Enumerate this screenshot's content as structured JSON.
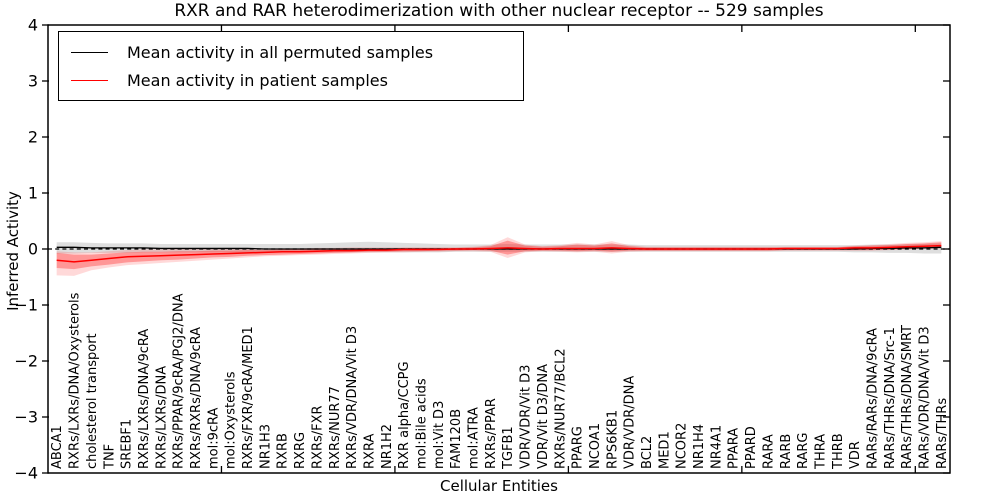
{
  "legend": {
    "items": [
      {
        "label": "Mean activity in all permuted samples",
        "color": "#000000"
      },
      {
        "label": "Mean activity in patient samples",
        "color": "#ff0000"
      }
    ]
  },
  "chart_data": {
    "type": "line",
    "title": "RXR and RAR heterodimerization with other nuclear receptor -- 529 samples",
    "xlabel": "Cellular Entities",
    "ylabel": "Inferred Activity",
    "ylim": [
      -4,
      4
    ],
    "ytick_labels": [
      "4",
      "3",
      "2",
      "1",
      "0",
      "−1",
      "−2",
      "−3",
      "−4"
    ],
    "ytick_values": [
      4,
      3,
      2,
      1,
      0,
      -1,
      -2,
      -3,
      -4
    ],
    "xtick_major_positions": [
      10,
      20,
      30,
      40,
      50
    ],
    "grid": false,
    "legend_position": "upper left",
    "zero_line": {
      "y": 0,
      "style": "dashed",
      "color": "#000000"
    },
    "axis_color": "#000000",
    "categories": [
      "ABCA1",
      "RXRs/LXRs/DNA/Oxysterols",
      "cholesterol transport",
      "TNF",
      "SREBF1",
      "RXRs/LXRs/DNA/9cRA",
      "RXRs/LXRs/DNA",
      "RXRs/PPAR/9cRA/PGJ2/DNA",
      "RXRs/RXRs/DNA/9cRA",
      "mol:9cRA",
      "mol:Oxysterols",
      "RXRs/FXR/9cRA/MED1",
      "NR1H3",
      "RXRB",
      "RXRG",
      "RXRs/FXR",
      "RXRs/NUR77",
      "RXRs/VDR/DNA/Vit D3",
      "RXRA",
      "NR1H2",
      "RXR alpha/CCPG",
      "mol:Bile acids",
      "mol:Vit D3",
      "FAM120B",
      "mol:ATRA",
      "RXRs/PPAR",
      "TGFB1",
      "VDR/VDR/Vit D3",
      "VDR/Vit D3/DNA",
      "RXRs/NUR77/BCL2",
      "PPARG",
      "NCOA1",
      "RPS6KB1",
      "VDR/VDR/DNA",
      "BCL2",
      "MED1",
      "NCOR2",
      "NR1H4",
      "NR4A1",
      "PPARA",
      "PPARD",
      "RARA",
      "RARB",
      "RARG",
      "THRA",
      "THRB",
      "VDR",
      "RARs/RARs/DNA/9cRA",
      "RARs/THRs/DNA/Src-1",
      "RARs/THRs/DNA/SMRT",
      "RARs/VDR/DNA/Vit D3",
      "RARs/THRs"
    ],
    "series": [
      {
        "name": "Mean activity in all permuted samples",
        "color": "#000000",
        "band_color": "rgba(0,0,0,0.13)",
        "values": [
          0.03,
          0.03,
          0.02,
          0.02,
          0.02,
          0.02,
          0.01,
          0.01,
          0.01,
          0.01,
          0.01,
          0.01,
          0,
          0,
          0,
          0,
          0,
          0,
          0,
          0,
          0,
          0,
          0,
          0,
          0,
          0,
          0,
          0,
          0,
          0,
          0,
          0,
          0,
          0,
          0,
          0,
          0,
          0,
          0,
          0,
          0,
          0,
          0,
          0,
          0,
          0,
          0,
          0.01,
          0.01,
          0.02,
          0.02,
          0.03
        ],
        "band_lower": [
          -0.08,
          -0.08,
          -0.07,
          -0.07,
          -0.07,
          -0.06,
          -0.06,
          -0.06,
          -0.06,
          -0.06,
          -0.06,
          -0.06,
          -0.06,
          -0.06,
          -0.06,
          -0.06,
          -0.06,
          -0.06,
          -0.06,
          -0.06,
          -0.06,
          -0.06,
          -0.06,
          -0.05,
          -0.05,
          -0.05,
          -0.05,
          -0.05,
          -0.05,
          -0.05,
          -0.05,
          -0.05,
          -0.05,
          -0.05,
          -0.05,
          -0.05,
          -0.05,
          -0.05,
          -0.05,
          -0.05,
          -0.05,
          -0.05,
          -0.05,
          -0.05,
          -0.05,
          -0.05,
          -0.06,
          -0.06,
          -0.07,
          -0.07,
          -0.08,
          -0.08
        ],
        "band_upper": [
          0.12,
          0.12,
          0.11,
          0.1,
          0.1,
          0.1,
          0.09,
          0.09,
          0.09,
          0.09,
          0.09,
          0.09,
          0.09,
          0.09,
          0.09,
          0.1,
          0.11,
          0.12,
          0.13,
          0.12,
          0.11,
          0.1,
          0.09,
          0.08,
          0.08,
          0.08,
          0.09,
          0.08,
          0.08,
          0.08,
          0.08,
          0.08,
          0.08,
          0.08,
          0.07,
          0.07,
          0.07,
          0.07,
          0.07,
          0.07,
          0.07,
          0.07,
          0.07,
          0.07,
          0.07,
          0.07,
          0.07,
          0.08,
          0.08,
          0.08,
          0.09,
          0.1
        ]
      },
      {
        "name": "Mean activity in patient samples",
        "color": "#ff0000",
        "band_color": "rgba(255,0,0,0.30)",
        "band2_color": "rgba(255,0,0,0.15)",
        "values": [
          -0.2,
          -0.23,
          -0.2,
          -0.17,
          -0.14,
          -0.13,
          -0.12,
          -0.11,
          -0.1,
          -0.09,
          -0.08,
          -0.07,
          -0.06,
          -0.05,
          -0.05,
          -0.04,
          -0.03,
          -0.03,
          -0.02,
          -0.02,
          -0.01,
          -0.01,
          -0.01,
          0,
          0,
          0.01,
          0.02,
          0.01,
          0,
          0.01,
          0.01,
          0.01,
          0.02,
          0.01,
          0,
          0,
          0,
          0,
          0,
          0,
          0,
          0,
          0.01,
          0.01,
          0.01,
          0.01,
          0.02,
          0.02,
          0.03,
          0.04,
          0.05,
          0.06
        ],
        "band_lower": [
          -0.34,
          -0.36,
          -0.31,
          -0.28,
          -0.24,
          -0.22,
          -0.2,
          -0.19,
          -0.17,
          -0.15,
          -0.14,
          -0.12,
          -0.11,
          -0.1,
          -0.09,
          -0.08,
          -0.07,
          -0.06,
          -0.05,
          -0.05,
          -0.04,
          -0.04,
          -0.03,
          -0.03,
          -0.02,
          -0.03,
          -0.1,
          -0.04,
          -0.03,
          -0.03,
          -0.04,
          -0.03,
          -0.05,
          -0.03,
          -0.03,
          -0.03,
          -0.03,
          -0.03,
          -0.03,
          -0.03,
          -0.03,
          -0.03,
          -0.02,
          -0.02,
          -0.02,
          -0.02,
          -0.02,
          -0.02,
          -0.01,
          0.0,
          0.01,
          0.02
        ],
        "band_upper": [
          -0.07,
          -0.1,
          -0.1,
          -0.08,
          -0.06,
          -0.05,
          -0.05,
          -0.04,
          -0.04,
          -0.03,
          -0.03,
          -0.02,
          -0.02,
          -0.01,
          -0.01,
          0.0,
          0.0,
          0.01,
          0.01,
          0.01,
          0.02,
          0.02,
          0.02,
          0.02,
          0.03,
          0.05,
          0.15,
          0.06,
          0.04,
          0.05,
          0.08,
          0.06,
          0.1,
          0.05,
          0.03,
          0.03,
          0.03,
          0.03,
          0.03,
          0.03,
          0.03,
          0.03,
          0.03,
          0.03,
          0.03,
          0.03,
          0.05,
          0.06,
          0.07,
          0.09,
          0.1,
          0.12
        ],
        "band2_lower": [
          -0.47,
          -0.48,
          -0.38,
          -0.33,
          -0.29,
          -0.27,
          -0.25,
          -0.23,
          -0.21,
          -0.19,
          -0.17,
          -0.15,
          -0.13,
          -0.12,
          -0.11,
          -0.1,
          -0.09,
          -0.08,
          -0.07,
          -0.06,
          -0.06,
          -0.05,
          -0.05,
          -0.04,
          -0.04,
          -0.05,
          -0.16,
          -0.06,
          -0.04,
          -0.05,
          -0.06,
          -0.05,
          -0.08,
          -0.05,
          -0.04,
          -0.04,
          -0.04,
          -0.04,
          -0.04,
          -0.04,
          -0.04,
          -0.04,
          -0.03,
          -0.03,
          -0.03,
          -0.03,
          -0.03,
          -0.03,
          -0.02,
          -0.01,
          0.0,
          0.01
        ],
        "band2_upper": [
          -0.04,
          -0.06,
          -0.06,
          -0.04,
          -0.02,
          -0.01,
          -0.01,
          0.0,
          0.0,
          0.0,
          0.0,
          0.01,
          0.01,
          0.01,
          0.01,
          0.02,
          0.02,
          0.03,
          0.03,
          0.03,
          0.03,
          0.03,
          0.03,
          0.03,
          0.04,
          0.07,
          0.21,
          0.08,
          0.05,
          0.07,
          0.11,
          0.08,
          0.14,
          0.07,
          0.04,
          0.04,
          0.04,
          0.04,
          0.04,
          0.04,
          0.04,
          0.04,
          0.04,
          0.04,
          0.04,
          0.04,
          0.06,
          0.07,
          0.09,
          0.11,
          0.12,
          0.14
        ]
      }
    ]
  }
}
